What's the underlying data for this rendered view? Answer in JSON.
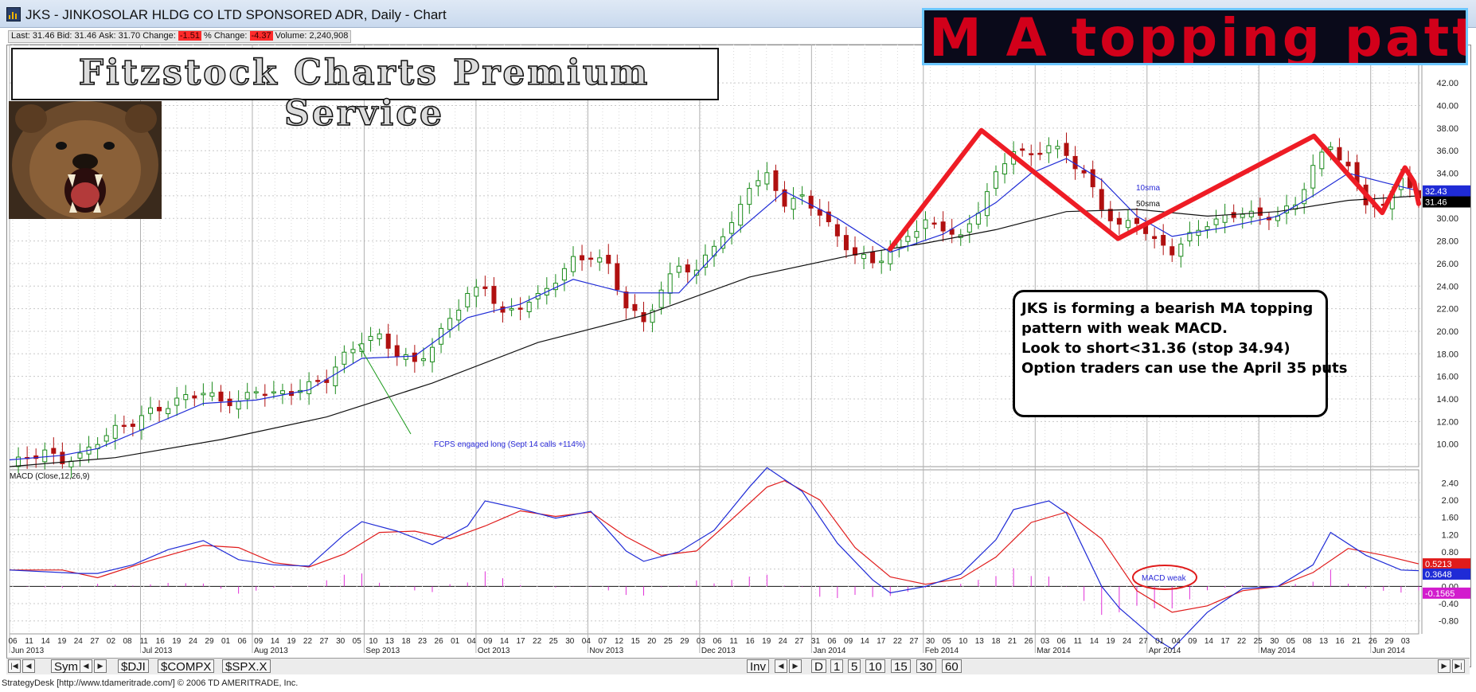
{
  "window": {
    "title": "JKS - JINKOSOLAR HLDG CO LTD SPONSORED ADR, Daily - Chart"
  },
  "quote": {
    "last_label": "Last:",
    "last": "31.46",
    "bid_label": "Bid:",
    "bid": "31.46",
    "ask_label": "Ask:",
    "ask": "31.70",
    "change_label": "Change:",
    "change": "-1.51",
    "pct_label": "% Change:",
    "pct": "-4.37",
    "volume_label": "Volume:",
    "volume": "2,240,908"
  },
  "brand": {
    "text": "Fitzstock Charts Premium Service"
  },
  "banner": {
    "text": "M A topping pattern"
  },
  "annotation": {
    "lines": [
      "JKS is forming a bearish MA topping",
      "pattern with weak MACD.",
      "",
      "Look to short<31.36 (stop 34.94)",
      "Option traders can use the April 35 puts"
    ]
  },
  "footer": {
    "text": "StrategyDesk [http://www.tdameritrade.com/] © 2006 TD AMERITRADE, Inc."
  },
  "tabs": {
    "sym": "Sym",
    "dji": "$DJI",
    "compx": "$COMPX",
    "spx": "$SPX.X",
    "inv": "Inv",
    "periods": [
      "D",
      "1",
      "5",
      "10",
      "15",
      "30",
      "60"
    ]
  },
  "colors": {
    "up_candle": "#1a8a1a",
    "down_candle": "#b01010",
    "sma10": "#1f2bd6",
    "sma50": "#111111",
    "macd": "#1f2bd6",
    "signal": "#e01b1b",
    "histogram": "#e030d8",
    "pattern": "#ee1c25",
    "last_price_tag": "#000000",
    "sma10_tag": "#1f2bd6",
    "hist_tag": "#d21ccd",
    "signal_tag": "#e01b1b"
  },
  "chart_data": [
    {
      "type": "candlestick",
      "title": "",
      "series": [
        {
          "name": "10sma"
        },
        {
          "name": "50sma"
        }
      ],
      "ylim": [
        8,
        43
      ],
      "yticks": [
        "10.00",
        "12.00",
        "14.00",
        "16.00",
        "18.00",
        "20.00",
        "22.00",
        "24.00",
        "26.00",
        "28.00",
        "30.00",
        "32.00",
        "34.00",
        "36.00",
        "38.00",
        "40.00",
        "42.00"
      ],
      "price_tags": {
        "sma10": "32.43",
        "last": "31.46"
      },
      "pattern_points": [
        [
          1.0,
          27.3
        ],
        [
          2.0,
          37.8
        ],
        [
          3.5,
          28.2
        ],
        [
          5.65,
          37.3
        ],
        [
          6.4,
          30.5
        ],
        [
          6.65,
          34.5
        ],
        [
          6.75,
          33.2
        ],
        [
          6.8,
          31.3
        ]
      ],
      "annotations": [
        {
          "text": "FCPS engaged long (Sept 14 calls +114%)"
        },
        {
          "text": "10sma"
        },
        {
          "text": "50sma"
        }
      ],
      "close_path": [
        [
          0,
          8.2
        ],
        [
          2,
          8.8
        ],
        [
          4,
          9.3
        ],
        [
          6,
          8.5
        ],
        [
          8,
          8.9
        ],
        [
          10,
          10.3
        ],
        [
          12,
          11.3
        ],
        [
          14,
          11.9
        ],
        [
          16,
          12.9
        ],
        [
          18,
          13.4
        ],
        [
          20,
          14.2
        ],
        [
          22,
          14.6
        ],
        [
          24,
          13.8
        ],
        [
          26,
          13.7
        ],
        [
          28,
          14.8
        ],
        [
          30,
          14.4
        ],
        [
          32,
          14.6
        ],
        [
          34,
          15.2
        ],
        [
          36,
          15.8
        ],
        [
          38,
          17.8
        ],
        [
          40,
          19.2
        ],
        [
          42,
          19.5
        ],
        [
          44,
          18.0
        ],
        [
          46,
          17.2
        ],
        [
          48,
          18.6
        ],
        [
          50,
          21.2
        ],
        [
          52,
          23.2
        ],
        [
          54,
          24.0
        ],
        [
          56,
          21.4
        ],
        [
          58,
          22.3
        ],
        [
          60,
          23.0
        ],
        [
          62,
          24.6
        ],
        [
          64,
          26.3
        ],
        [
          66,
          26.7
        ],
        [
          68,
          25.8
        ],
        [
          70,
          22.2
        ],
        [
          72,
          20.8
        ],
        [
          74,
          23.6
        ],
        [
          76,
          25.9
        ],
        [
          78,
          25.2
        ],
        [
          80,
          27.8
        ],
        [
          82,
          29.3
        ],
        [
          84,
          33.0
        ],
        [
          86,
          33.7
        ],
        [
          88,
          31.4
        ],
        [
          90,
          31.8
        ],
        [
          92,
          30.5
        ],
        [
          94,
          28.3
        ],
        [
          96,
          26.8
        ],
        [
          98,
          26.1
        ],
        [
          100,
          27.0
        ],
        [
          102,
          28.6
        ],
        [
          104,
          29.6
        ],
        [
          106,
          29.2
        ],
        [
          108,
          28.2
        ],
        [
          110,
          30.8
        ],
        [
          112,
          33.8
        ],
        [
          114,
          36.2
        ],
        [
          116,
          35.4
        ],
        [
          118,
          36.6
        ],
        [
          120,
          35.5
        ],
        [
          122,
          34.0
        ],
        [
          124,
          30.9
        ],
        [
          126,
          29.3
        ],
        [
          128,
          29.8
        ],
        [
          130,
          27.9
        ],
        [
          132,
          27.1
        ],
        [
          134,
          28.4
        ],
        [
          136,
          29.6
        ],
        [
          138,
          30.0
        ],
        [
          140,
          30.6
        ],
        [
          142,
          30.1
        ],
        [
          144,
          30.3
        ],
        [
          146,
          31.2
        ],
        [
          148,
          34.6
        ],
        [
          150,
          36.5
        ],
        [
          152,
          34.4
        ],
        [
          154,
          31.5
        ],
        [
          156,
          30.8
        ],
        [
          158,
          33.9
        ],
        [
          160,
          31.46
        ]
      ],
      "sma10_path": [
        [
          0,
          8.6
        ],
        [
          6,
          9.0
        ],
        [
          10,
          9.6
        ],
        [
          16,
          11.6
        ],
        [
          22,
          13.6
        ],
        [
          28,
          13.9
        ],
        [
          34,
          14.8
        ],
        [
          40,
          17.6
        ],
        [
          46,
          17.8
        ],
        [
          52,
          21.2
        ],
        [
          58,
          22.4
        ],
        [
          64,
          24.6
        ],
        [
          70,
          23.4
        ],
        [
          76,
          23.4
        ],
        [
          82,
          28.4
        ],
        [
          88,
          32.4
        ],
        [
          94,
          30.0
        ],
        [
          100,
          27.0
        ],
        [
          106,
          28.6
        ],
        [
          112,
          31.4
        ],
        [
          116,
          34.0
        ],
        [
          120,
          35.3
        ],
        [
          124,
          33.4
        ],
        [
          128,
          30.2
        ],
        [
          132,
          28.4
        ],
        [
          138,
          29.2
        ],
        [
          144,
          30.2
        ],
        [
          148,
          32.0
        ],
        [
          152,
          34.0
        ],
        [
          156,
          33.2
        ],
        [
          160,
          32.43
        ]
      ],
      "sma50_path": [
        [
          0,
          8.0
        ],
        [
          12,
          8.8
        ],
        [
          24,
          10.4
        ],
        [
          36,
          12.4
        ],
        [
          48,
          15.4
        ],
        [
          60,
          19.0
        ],
        [
          72,
          21.4
        ],
        [
          84,
          24.8
        ],
        [
          96,
          26.8
        ],
        [
          104,
          27.8
        ],
        [
          112,
          29.0
        ],
        [
          120,
          30.6
        ],
        [
          128,
          30.8
        ],
        [
          136,
          30.2
        ],
        [
          144,
          30.6
        ],
        [
          152,
          31.6
        ],
        [
          160,
          32.0
        ]
      ],
      "x_day_labels": [
        "06",
        "11",
        "14",
        "19",
        "24",
        "27",
        "02",
        "08",
        "11",
        "16",
        "19",
        "24",
        "29",
        "01",
        "06",
        "09",
        "14",
        "19",
        "22",
        "27",
        "30",
        "05",
        "10",
        "13",
        "18",
        "23",
        "26",
        "01",
        "04",
        "09",
        "14",
        "17",
        "22",
        "25",
        "30",
        "04",
        "07",
        "12",
        "15",
        "20",
        "25",
        "29",
        "03",
        "06",
        "11",
        "16",
        "19",
        "24",
        "27",
        "31",
        "06",
        "09",
        "14",
        "17",
        "22",
        "27",
        "30",
        "05",
        "10",
        "13",
        "18",
        "21",
        "26",
        "03",
        "06",
        "11",
        "14",
        "19",
        "24",
        "27",
        "01",
        "04",
        "09",
        "14",
        "17",
        "22",
        "25",
        "30",
        "05",
        "08",
        "13",
        "16",
        "21",
        "26",
        "29",
        "03"
      ],
      "x_month_labels": [
        "Jun 2013",
        "Jul 2013",
        "Aug 2013",
        "Sep 2013",
        "Oct 2013",
        "Nov 2013",
        "Dec 2013",
        "Jan 2014",
        "Feb 2014",
        "Mar 2014",
        "Apr 2014",
        "May 2014",
        "Jun 2014"
      ]
    },
    {
      "type": "line",
      "title": "MACD (Close,12,26,9)",
      "series": [
        {
          "name": "MACD",
          "values_path": [
            [
              0,
              0.38
            ],
            [
              8,
              0.3
            ],
            [
              10,
              0.3
            ],
            [
              14,
              0.5
            ],
            [
              18,
              0.85
            ],
            [
              22,
              1.06
            ],
            [
              26,
              0.62
            ],
            [
              30,
              0.5
            ],
            [
              34,
              0.47
            ],
            [
              38,
              1.2
            ],
            [
              40,
              1.5
            ],
            [
              44,
              1.28
            ],
            [
              48,
              0.97
            ],
            [
              52,
              1.4
            ],
            [
              54,
              1.98
            ],
            [
              58,
              1.8
            ],
            [
              62,
              1.58
            ],
            [
              66,
              1.74
            ],
            [
              70,
              0.82
            ],
            [
              72,
              0.58
            ],
            [
              76,
              0.8
            ],
            [
              80,
              1.3
            ],
            [
              84,
              2.3
            ],
            [
              86,
              2.75
            ],
            [
              90,
              2.2
            ],
            [
              94,
              1.0
            ],
            [
              98,
              0.15
            ],
            [
              100,
              -0.15
            ],
            [
              104,
              0.0
            ],
            [
              108,
              0.28
            ],
            [
              112,
              1.08
            ],
            [
              114,
              1.78
            ],
            [
              118,
              1.98
            ],
            [
              120,
              1.7
            ],
            [
              124,
              0.0
            ],
            [
              126,
              -0.5
            ],
            [
              130,
              -1.2
            ],
            [
              132,
              -1.45
            ],
            [
              136,
              -0.6
            ],
            [
              140,
              -0.05
            ],
            [
              144,
              0.0
            ],
            [
              148,
              0.5
            ],
            [
              150,
              1.25
            ],
            [
              154,
              0.72
            ],
            [
              158,
              0.38
            ],
            [
              160,
              0.3648
            ]
          ]
        },
        {
          "name": "Signal",
          "values_path": [
            [
              0,
              0.38
            ],
            [
              6,
              0.38
            ],
            [
              10,
              0.2
            ],
            [
              16,
              0.6
            ],
            [
              22,
              0.95
            ],
            [
              26,
              0.9
            ],
            [
              30,
              0.55
            ],
            [
              34,
              0.45
            ],
            [
              38,
              0.75
            ],
            [
              42,
              1.25
            ],
            [
              46,
              1.28
            ],
            [
              50,
              1.1
            ],
            [
              54,
              1.4
            ],
            [
              58,
              1.75
            ],
            [
              62,
              1.62
            ],
            [
              66,
              1.72
            ],
            [
              70,
              1.15
            ],
            [
              74,
              0.72
            ],
            [
              78,
              0.82
            ],
            [
              82,
              1.55
            ],
            [
              86,
              2.3
            ],
            [
              88,
              2.45
            ],
            [
              92,
              2.0
            ],
            [
              96,
              0.9
            ],
            [
              100,
              0.22
            ],
            [
              104,
              0.05
            ],
            [
              108,
              0.18
            ],
            [
              112,
              0.68
            ],
            [
              116,
              1.48
            ],
            [
              120,
              1.72
            ],
            [
              124,
              1.1
            ],
            [
              128,
              -0.1
            ],
            [
              132,
              -0.6
            ],
            [
              136,
              -0.45
            ],
            [
              140,
              -0.1
            ],
            [
              144,
              0.0
            ],
            [
              148,
              0.32
            ],
            [
              152,
              0.88
            ],
            [
              156,
              0.72
            ],
            [
              160,
              0.5213
            ]
          ]
        },
        {
          "name": "Histogram"
        }
      ],
      "ylim": [
        -1.1,
        2.7
      ],
      "yticks": [
        "2.40",
        "2.00",
        "1.60",
        "1.20",
        "0.80",
        "0.40",
        "0.00",
        "-0.40",
        "-0.80"
      ],
      "value_tags": {
        "signal": "0.5213",
        "macd": "0.3648",
        "histogram": "-0.1565"
      },
      "annotations": [
        {
          "text": "MACD weak"
        }
      ]
    }
  ]
}
